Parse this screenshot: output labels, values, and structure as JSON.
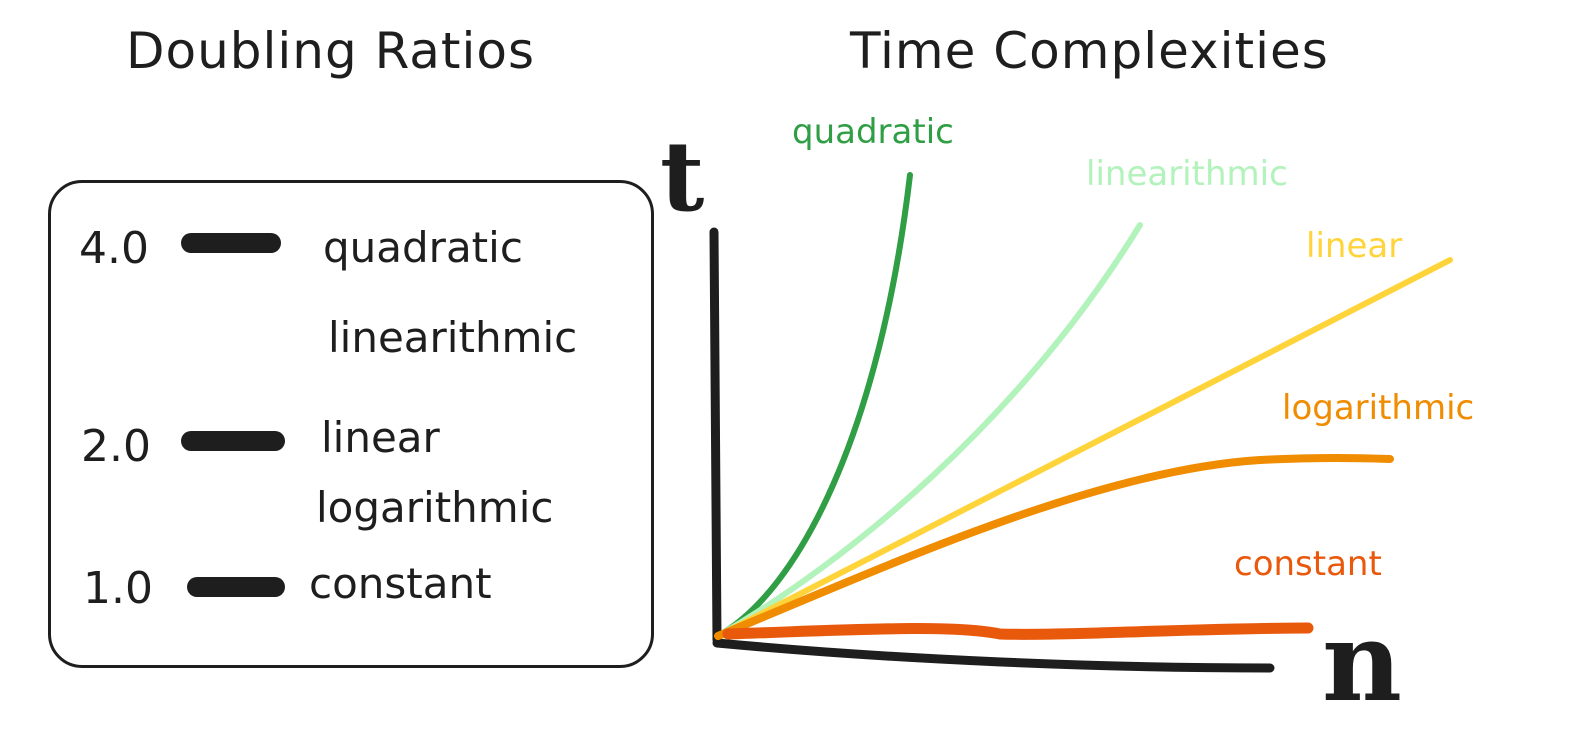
{
  "titles": {
    "doubling_ratios": "Doubling Ratios",
    "time_complexities": "Time Complexities"
  },
  "doubling_ratios": [
    {
      "ratio": "4.0",
      "label": "quadratic"
    },
    {
      "ratio": "",
      "label": "linearithmic"
    },
    {
      "ratio": "2.0",
      "label": "linear"
    },
    {
      "ratio": "",
      "label": "logarithmic"
    },
    {
      "ratio": "1.0",
      "label": "constant"
    }
  ],
  "plot": {
    "y_axis_label": "t",
    "x_axis_label": "n",
    "curves": [
      {
        "name": "quadratic",
        "color": "#2f9e44"
      },
      {
        "name": "linearithmic",
        "color": "#b2f2bb"
      },
      {
        "name": "linear",
        "color": "#ffd43b"
      },
      {
        "name": "logarithmic",
        "color": "#f08c00"
      },
      {
        "name": "constant",
        "color": "#e8590c"
      }
    ]
  }
}
